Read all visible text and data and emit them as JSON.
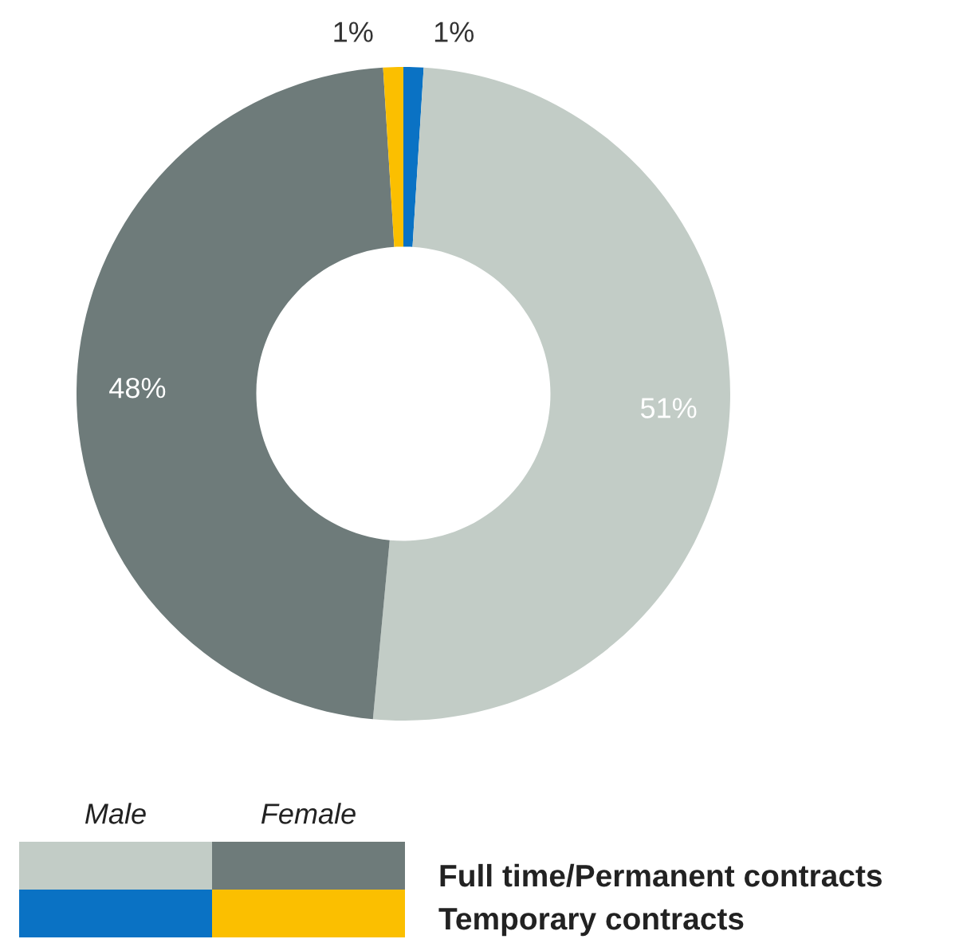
{
  "chart_data": {
    "type": "donut",
    "categories": [
      null,
      null,
      null,
      null
    ],
    "values": [
      1,
      51,
      48,
      1
    ],
    "colors": [
      "#0a72c4",
      "#c2ccc6",
      "#6e7b7a",
      "#fbbf00"
    ],
    "value_labels": [
      "1%",
      "51%",
      "48%",
      "1%"
    ],
    "annotations": [
      "Male",
      "Female",
      "Full time/Permanent contracts",
      "Temporary contracts"
    ]
  }
}
